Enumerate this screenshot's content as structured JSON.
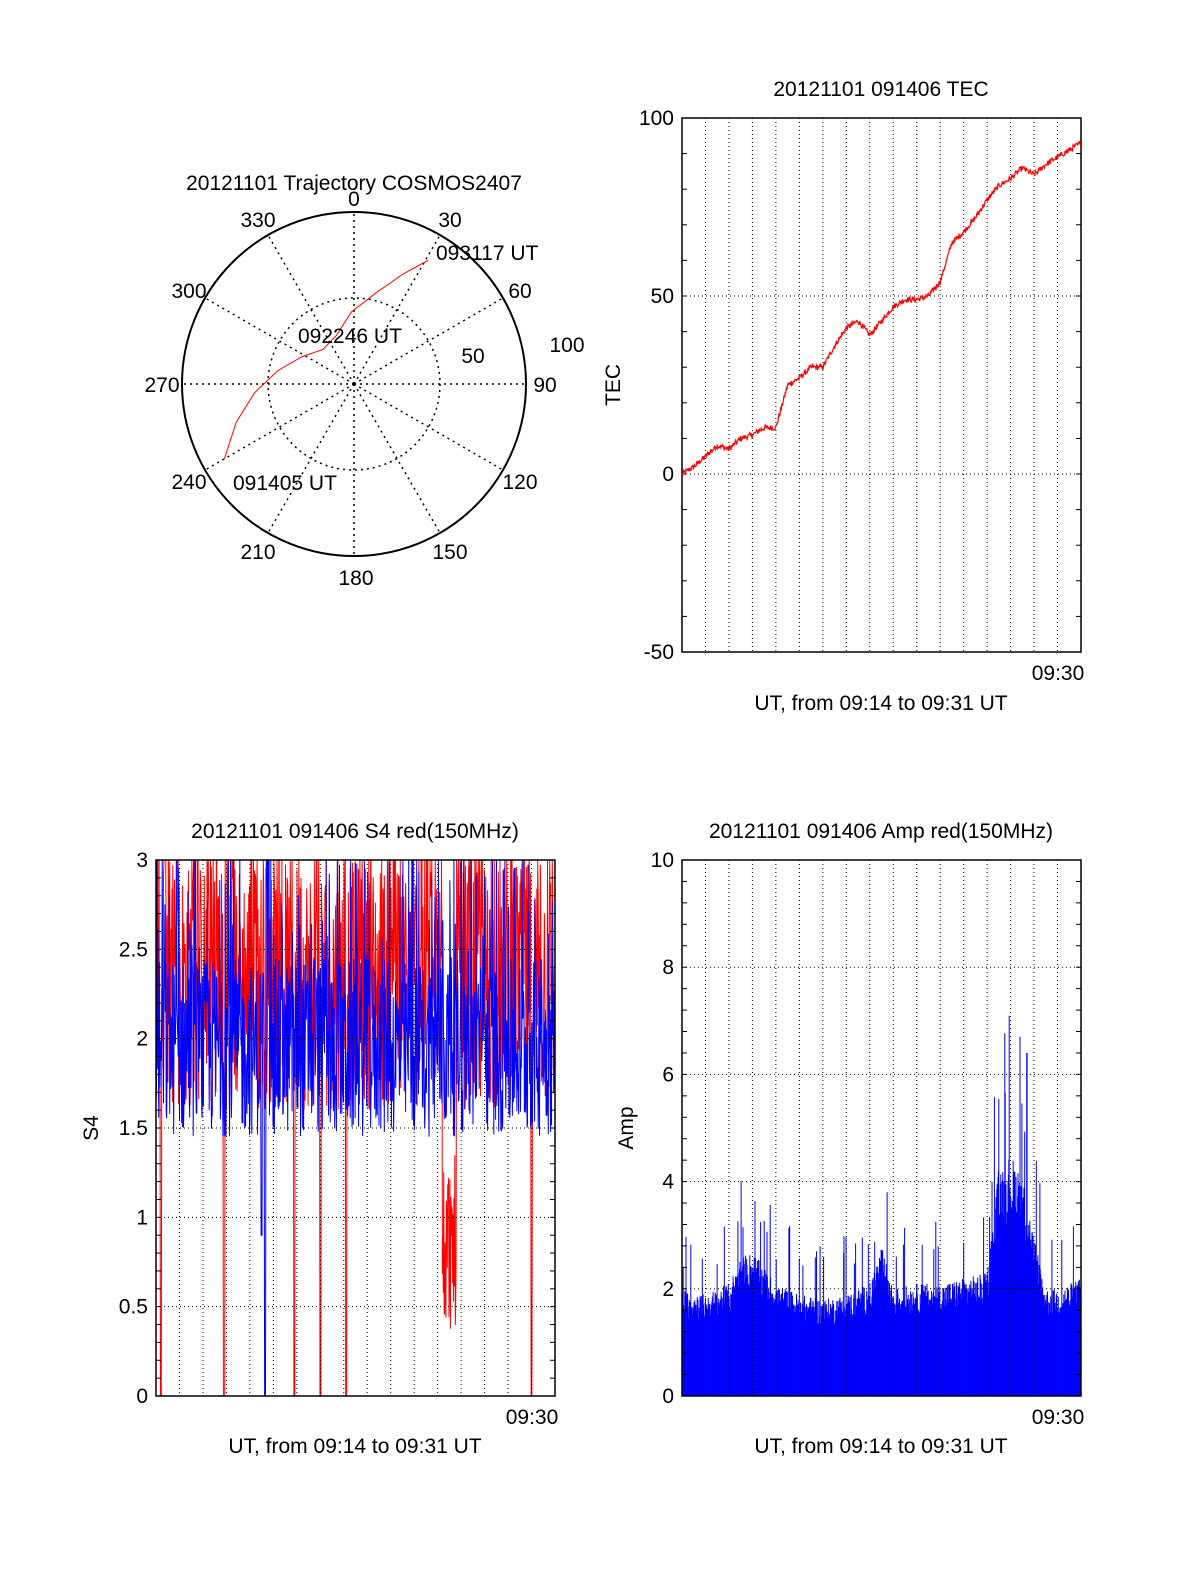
{
  "colors": {
    "axis": "#000000",
    "trace_red": "#ff0000",
    "trace_blue": "#0000ff",
    "grid": "#000000"
  },
  "chart_data": [
    {
      "id": "polar",
      "type": "polar-trajectory",
      "title": "20121101 Trajectory COSMOS2407",
      "azimuth_labels": [
        "0",
        "30",
        "60",
        "90",
        "120",
        "150",
        "180",
        "210",
        "240",
        "270",
        "300",
        "330"
      ],
      "radial_labels": [
        "50",
        "100"
      ],
      "elevation_rings": [
        50,
        100
      ],
      "trajectory": {
        "series_color": "#ff0000",
        "points": [
          [
            240,
            87
          ],
          [
            252,
            72
          ],
          [
            265,
            58
          ],
          [
            280,
            45
          ],
          [
            298,
            34
          ],
          [
            318,
            27
          ],
          [
            340,
            30
          ],
          [
            358,
            42
          ],
          [
            14,
            55
          ],
          [
            24,
            70
          ],
          [
            31,
            84
          ]
        ]
      },
      "annotations": [
        "093117 UT",
        "092246 UT",
        "091405 UT"
      ]
    },
    {
      "id": "tec",
      "type": "line",
      "title": "20121101 091406 TEC",
      "ylabel": "TEC",
      "xlabel": "UT, from 09:14 to 09:31 UT",
      "ylim": [
        -50,
        100
      ],
      "yticks": [
        "100",
        "50",
        "0",
        "-50"
      ],
      "xticks": [
        "09:30"
      ],
      "xlim_minutes": [
        0,
        17
      ],
      "grid": true,
      "series": [
        {
          "color": "#ff0000",
          "x": [
            0,
            0.5,
            1,
            1.5,
            2,
            2.5,
            3,
            3.5,
            4,
            4.5,
            5,
            5.5,
            6,
            6.5,
            7,
            7.5,
            8,
            8.5,
            9,
            9.5,
            10,
            10.5,
            11,
            11.5,
            12,
            12.5,
            13,
            13.5,
            14,
            14.5,
            15,
            15.5,
            16,
            16.5,
            17
          ],
          "y": [
            0,
            2,
            5,
            8,
            7,
            10,
            11,
            13,
            13,
            25,
            27,
            30,
            30,
            36,
            41,
            43,
            39,
            43,
            47,
            49,
            49,
            50,
            54,
            65,
            68,
            72,
            77,
            81,
            83,
            86,
            84,
            87,
            89,
            91,
            93
          ]
        }
      ]
    },
    {
      "id": "s4",
      "type": "line",
      "title": "20121101 091406 S4 red(150MHz)",
      "ylabel": "S4",
      "xlabel": "UT, from 09:14 to 09:31 UT",
      "ylim": [
        0,
        3
      ],
      "yticks": [
        "3",
        "2.5",
        "2",
        "1.5",
        "1",
        "0.5",
        "0"
      ],
      "xticks": [
        "09:30"
      ],
      "xlim_minutes": [
        0,
        17
      ],
      "grid": true,
      "series": [
        {
          "color": "#ff0000",
          "level_y": 2.3,
          "spread": 0.7,
          "dips": [
            [
              0.2,
              0
            ],
            [
              2.9,
              0
            ],
            [
              5.9,
              0
            ],
            [
              7.0,
              0
            ],
            [
              8.1,
              0
            ],
            [
              12.4,
              0.3
            ],
            [
              12.6,
              0.35
            ],
            [
              16.0,
              0
            ]
          ]
        },
        {
          "color": "#0000ff",
          "level_y": 1.95,
          "spread": 0.5,
          "dips": [
            [
              4.5,
              0.9
            ],
            [
              4.65,
              0
            ]
          ]
        }
      ]
    },
    {
      "id": "amp",
      "type": "bar",
      "title": "20121101 091406 Amp red(150MHz)",
      "ylabel": "Amp",
      "xlabel": "UT, from 09:14 to 09:31 UT",
      "ylim": [
        0,
        10
      ],
      "yticks": [
        "10",
        "8",
        "6",
        "4",
        "2",
        "0"
      ],
      "xticks": [
        "09:30"
      ],
      "xlim_minutes": [
        0,
        17
      ],
      "grid": true,
      "series": [
        {
          "color": "#0000ff",
          "envelope_x": [
            0,
            1,
            2,
            2.5,
            3,
            3.5,
            4,
            5,
            6,
            7,
            8,
            8.5,
            9,
            10,
            11,
            12,
            13,
            13.5,
            14,
            14.5,
            15,
            15.5,
            16,
            17
          ],
          "envelope_y": [
            2.0,
            1.9,
            2.1,
            2.6,
            2.7,
            2.4,
            2.1,
            1.9,
            1.8,
            1.9,
            2.1,
            2.8,
            2.0,
            2.1,
            2.1,
            2.2,
            2.3,
            4.3,
            4.5,
            4.2,
            3.0,
            2.0,
            2.0,
            2.2
          ],
          "peak_y": 6.4
        }
      ]
    }
  ]
}
